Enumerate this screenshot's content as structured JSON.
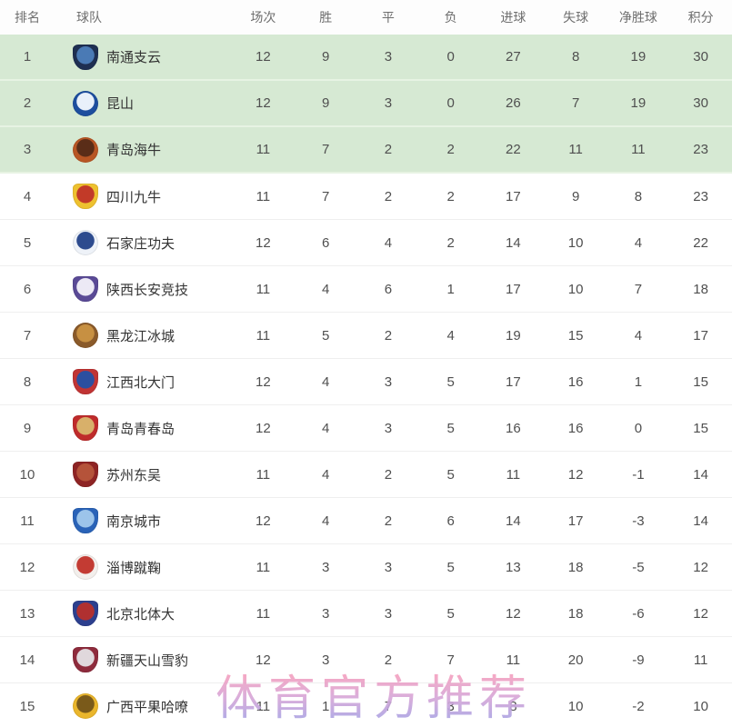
{
  "table": {
    "columns": [
      "排名",
      "球队",
      "场次",
      "胜",
      "平",
      "负",
      "进球",
      "失球",
      "净胜球",
      "积分"
    ],
    "highlight_color": "#d6e9d3",
    "rows": [
      {
        "rank": "1",
        "team": "南通支云",
        "highlight": true,
        "logo": {
          "shape": "shield",
          "c1": "#1e2f52",
          "c2": "#4a7ab5"
        },
        "played": "12",
        "win": "9",
        "draw": "3",
        "loss": "0",
        "gf": "27",
        "ga": "8",
        "gd": "19",
        "pts": "30"
      },
      {
        "rank": "2",
        "team": "昆山",
        "highlight": true,
        "logo": {
          "shape": "circle",
          "c1": "#1d4e9e",
          "c2": "#e9f0fa"
        },
        "played": "12",
        "win": "9",
        "draw": "3",
        "loss": "0",
        "gf": "26",
        "ga": "7",
        "gd": "19",
        "pts": "30"
      },
      {
        "rank": "3",
        "team": "青岛海牛",
        "highlight": true,
        "logo": {
          "shape": "circle",
          "c1": "#b85624",
          "c2": "#5a2d18"
        },
        "played": "11",
        "win": "7",
        "draw": "2",
        "loss": "2",
        "gf": "22",
        "ga": "11",
        "gd": "11",
        "pts": "23"
      },
      {
        "rank": "4",
        "team": "四川九牛",
        "highlight": false,
        "logo": {
          "shape": "shield",
          "c1": "#eec12f",
          "c2": "#c23a28"
        },
        "played": "11",
        "win": "7",
        "draw": "2",
        "loss": "2",
        "gf": "17",
        "ga": "9",
        "gd": "8",
        "pts": "23"
      },
      {
        "rank": "5",
        "team": "石家庄功夫",
        "highlight": false,
        "logo": {
          "shape": "circle",
          "c1": "#eef2f8",
          "c2": "#2d4b8e"
        },
        "played": "12",
        "win": "6",
        "draw": "4",
        "loss": "2",
        "gf": "14",
        "ga": "10",
        "gd": "4",
        "pts": "22"
      },
      {
        "rank": "6",
        "team": "陕西长安竞技",
        "highlight": false,
        "logo": {
          "shape": "shield",
          "c1": "#5a4a96",
          "c2": "#ece9f5"
        },
        "played": "11",
        "win": "4",
        "draw": "6",
        "loss": "1",
        "gf": "17",
        "ga": "10",
        "gd": "7",
        "pts": "18"
      },
      {
        "rank": "7",
        "team": "黑龙江冰城",
        "highlight": false,
        "logo": {
          "shape": "circle",
          "c1": "#8a5a2a",
          "c2": "#c79042"
        },
        "played": "11",
        "win": "5",
        "draw": "2",
        "loss": "4",
        "gf": "19",
        "ga": "15",
        "gd": "4",
        "pts": "17"
      },
      {
        "rank": "8",
        "team": "江西北大门",
        "highlight": false,
        "logo": {
          "shape": "shield",
          "c1": "#c13434",
          "c2": "#2c4fa0"
        },
        "played": "12",
        "win": "4",
        "draw": "3",
        "loss": "5",
        "gf": "17",
        "ga": "16",
        "gd": "1",
        "pts": "15"
      },
      {
        "rank": "9",
        "team": "青岛青春岛",
        "highlight": false,
        "logo": {
          "shape": "shield",
          "c1": "#bf2b2b",
          "c2": "#d8b06a"
        },
        "played": "12",
        "win": "4",
        "draw": "3",
        "loss": "5",
        "gf": "16",
        "ga": "16",
        "gd": "0",
        "pts": "15"
      },
      {
        "rank": "10",
        "team": "苏州东吴",
        "highlight": false,
        "logo": {
          "shape": "shield",
          "c1": "#8e2424",
          "c2": "#b5533a"
        },
        "played": "11",
        "win": "4",
        "draw": "2",
        "loss": "5",
        "gf": "11",
        "ga": "12",
        "gd": "-1",
        "pts": "14"
      },
      {
        "rank": "11",
        "team": "南京城市",
        "highlight": false,
        "logo": {
          "shape": "shield",
          "c1": "#2a63b8",
          "c2": "#9cc4ea"
        },
        "played": "12",
        "win": "4",
        "draw": "2",
        "loss": "6",
        "gf": "14",
        "ga": "17",
        "gd": "-3",
        "pts": "14"
      },
      {
        "rank": "12",
        "team": "淄博蹴鞠",
        "highlight": false,
        "logo": {
          "shape": "circle",
          "c1": "#f3efec",
          "c2": "#c33b33"
        },
        "played": "11",
        "win": "3",
        "draw": "3",
        "loss": "5",
        "gf": "13",
        "ga": "18",
        "gd": "-5",
        "pts": "12"
      },
      {
        "rank": "13",
        "team": "北京北体大",
        "highlight": false,
        "logo": {
          "shape": "shield",
          "c1": "#2c3f8e",
          "c2": "#b03030"
        },
        "played": "11",
        "win": "3",
        "draw": "3",
        "loss": "5",
        "gf": "12",
        "ga": "18",
        "gd": "-6",
        "pts": "12"
      },
      {
        "rank": "14",
        "team": "新疆天山雪豹",
        "highlight": false,
        "logo": {
          "shape": "shield",
          "c1": "#8e2b3c",
          "c2": "#e0d8dc"
        },
        "played": "12",
        "win": "3",
        "draw": "2",
        "loss": "7",
        "gf": "11",
        "ga": "20",
        "gd": "-9",
        "pts": "11"
      },
      {
        "rank": "15",
        "team": "广西平果哈嘹",
        "highlight": false,
        "logo": {
          "shape": "circle",
          "c1": "#eab62c",
          "c2": "#7a5a1a"
        },
        "played": "11",
        "win": "1",
        "draw": "7",
        "loss": "3",
        "gf": "8",
        "ga": "10",
        "gd": "-2",
        "pts": "10"
      }
    ]
  },
  "watermark": {
    "text": "体育官方推荐",
    "color_top": "#f2a2c2",
    "color_bottom": "#a9a4e4"
  }
}
